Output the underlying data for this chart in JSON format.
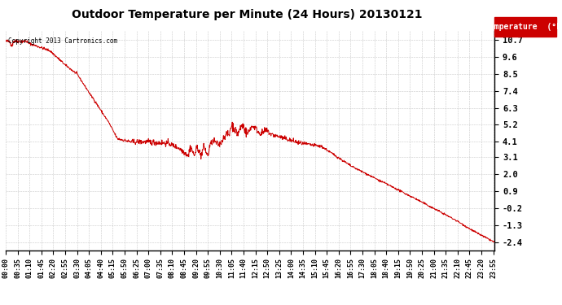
{
  "title": "Outdoor Temperature per Minute (24 Hours) 20130121",
  "copyright_text": "Copyright 2013 Cartronics.com",
  "legend_label": "Temperature  (°F)",
  "line_color": "#cc0000",
  "legend_bg": "#cc0000",
  "legend_text_color": "#ffffff",
  "background_color": "#ffffff",
  "grid_color": "#bbbbbb",
  "yticks": [
    10.7,
    9.6,
    8.5,
    7.4,
    6.3,
    5.2,
    4.1,
    3.1,
    2.0,
    0.9,
    -0.2,
    -1.3,
    -2.4
  ],
  "ylim": [
    -2.9,
    11.3
  ],
  "total_minutes": 1440,
  "xtick_interval": 35,
  "figwidth": 6.9,
  "figheight": 3.75,
  "dpi": 100
}
